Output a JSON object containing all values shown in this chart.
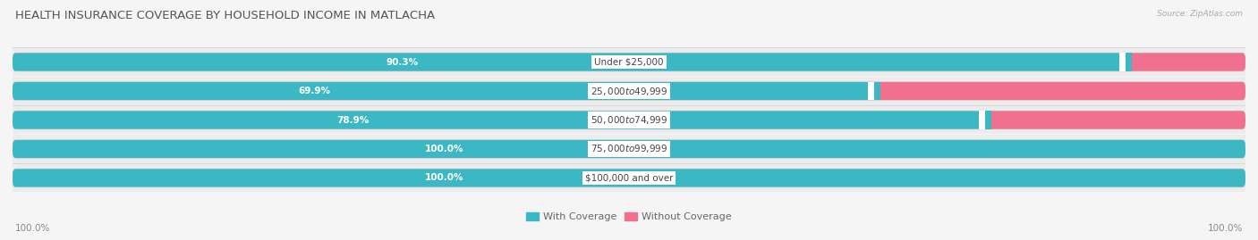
{
  "title": "HEALTH INSURANCE COVERAGE BY HOUSEHOLD INCOME IN MATLACHA",
  "source": "Source: ZipAtlas.com",
  "categories": [
    "Under $25,000",
    "$25,000 to $49,999",
    "$50,000 to $74,999",
    "$75,000 to $99,999",
    "$100,000 and over"
  ],
  "with_coverage": [
    90.3,
    69.9,
    78.9,
    100.0,
    100.0
  ],
  "without_coverage": [
    9.7,
    30.1,
    21.1,
    0.0,
    0.0
  ],
  "color_with": "#3cb8c4",
  "color_without": "#f07090",
  "bg_color": "#f5f5f5",
  "bar_bg_color": "#e8e8e8",
  "title_fontsize": 9.5,
  "label_fontsize": 7.5,
  "legend_fontsize": 8,
  "footer_fontsize": 7.5,
  "bar_height": 0.62,
  "x_left_label": "100.0%",
  "x_right_label": "100.0%"
}
